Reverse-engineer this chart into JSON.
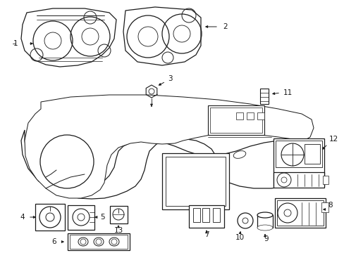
{
  "background": "#ffffff",
  "line_color": "#1a1a1a",
  "figure_width": 4.89,
  "figure_height": 3.6,
  "dpi": 100
}
